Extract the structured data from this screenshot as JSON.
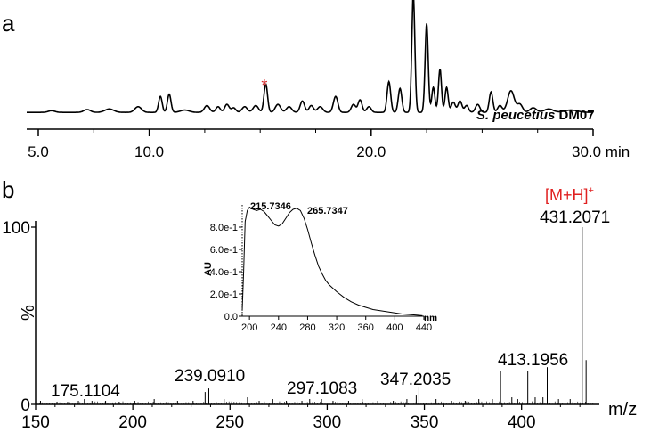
{
  "chart_data": [
    {
      "panel": "a",
      "type": "line",
      "sample_label_italic": "S. peucetius",
      "sample_label_suffix": "DM07",
      "marker_symbol": "*",
      "marker_x": 15.25,
      "marker_color": "#d62728",
      "xlim": [
        5.0,
        30.0
      ],
      "ylim": [
        0,
        100
      ],
      "xticks": [
        "5.0",
        "10.0",
        "20.0",
        "30.0 min"
      ],
      "xtick_values": [
        5.0,
        10.0,
        20.0,
        30.0
      ],
      "minor_tick_values": [
        7.5,
        12.5,
        15.0,
        17.5,
        22.5,
        25.0,
        27.5
      ],
      "baseline": 3,
      "peaks": [
        [
          5.6,
          1.5,
          0.15
        ],
        [
          7.2,
          2.5,
          0.15
        ],
        [
          8.2,
          3,
          0.2
        ],
        [
          9.5,
          5,
          0.15
        ],
        [
          10.5,
          14,
          0.08
        ],
        [
          10.9,
          16,
          0.08
        ],
        [
          11.6,
          2,
          0.2
        ],
        [
          12.6,
          6,
          0.12
        ],
        [
          13.1,
          5,
          0.1
        ],
        [
          13.5,
          7,
          0.1
        ],
        [
          13.8,
          4,
          0.1
        ],
        [
          14.3,
          5,
          0.12
        ],
        [
          14.8,
          6,
          0.12
        ],
        [
          15.25,
          25,
          0.08
        ],
        [
          15.8,
          7,
          0.12
        ],
        [
          16.3,
          5,
          0.12
        ],
        [
          16.9,
          10,
          0.1
        ],
        [
          17.3,
          6,
          0.1
        ],
        [
          17.7,
          5,
          0.12
        ],
        [
          18.4,
          14,
          0.1
        ],
        [
          19.2,
          7,
          0.1
        ],
        [
          19.5,
          11,
          0.09
        ],
        [
          19.9,
          5,
          0.1
        ],
        [
          20.8,
          27,
          0.08
        ],
        [
          21.3,
          21,
          0.08
        ],
        [
          21.9,
          103,
          0.07
        ],
        [
          22.5,
          78,
          0.07
        ],
        [
          22.8,
          22,
          0.07
        ],
        [
          23.1,
          38,
          0.07
        ],
        [
          23.4,
          22,
          0.07
        ],
        [
          23.7,
          9,
          0.09
        ],
        [
          24.0,
          10,
          0.09
        ],
        [
          24.3,
          6,
          0.09
        ],
        [
          24.8,
          7,
          0.1
        ],
        [
          25.4,
          18,
          0.08
        ],
        [
          25.8,
          6,
          0.1
        ],
        [
          26.3,
          19,
          0.15
        ],
        [
          26.7,
          7,
          0.12
        ],
        [
          27.3,
          4,
          0.15
        ],
        [
          28.0,
          3,
          0.2
        ],
        [
          29.0,
          2,
          0.3
        ]
      ]
    },
    {
      "panel": "b",
      "type": "bar",
      "xlabel": "m/z",
      "ylabel": "%",
      "xlim": [
        150,
        440
      ],
      "ylim": [
        0,
        100
      ],
      "xticks": [
        "150",
        "200",
        "250",
        "300",
        "350",
        "400"
      ],
      "xtick_values": [
        150,
        200,
        250,
        300,
        350,
        400
      ],
      "yticks": [
        "0",
        "100"
      ],
      "ytick_values": [
        0,
        100
      ],
      "adduct_label": "[M+H]",
      "adduct_sup": "+",
      "adduct_color": "#e02020",
      "peak_labels": [
        {
          "mz": 175.1104,
          "text": "175.1104"
        },
        {
          "mz": 239.091,
          "text": "239.0910"
        },
        {
          "mz": 297.1083,
          "text": "297.1083"
        },
        {
          "mz": 347.2035,
          "text": "347.2035"
        },
        {
          "mz": 413.1956,
          "text": "413.1956"
        },
        {
          "mz": 431.2071,
          "text": "431.2071"
        }
      ],
      "peaks": [
        [
          152.5,
          2
        ],
        [
          161,
          1.5
        ],
        [
          167,
          1.5
        ],
        [
          172,
          2
        ],
        [
          175.1,
          3
        ],
        [
          179,
          2
        ],
        [
          186,
          2
        ],
        [
          193,
          1.5
        ],
        [
          201,
          2
        ],
        [
          211,
          3
        ],
        [
          223,
          2
        ],
        [
          231,
          2
        ],
        [
          237.2,
          7
        ],
        [
          239.1,
          9
        ],
        [
          247,
          3
        ],
        [
          251,
          2
        ],
        [
          259,
          4
        ],
        [
          265,
          2
        ],
        [
          272,
          3
        ],
        [
          279,
          2
        ],
        [
          287,
          2
        ],
        [
          291,
          3
        ],
        [
          297.1,
          3
        ],
        [
          303,
          2
        ],
        [
          311,
          2
        ],
        [
          318,
          3
        ],
        [
          326,
          2
        ],
        [
          334,
          2
        ],
        [
          341,
          3
        ],
        [
          345.8,
          5
        ],
        [
          347.2,
          10
        ],
        [
          356,
          3
        ],
        [
          364,
          2
        ],
        [
          371,
          2
        ],
        [
          378,
          3
        ],
        [
          385,
          3
        ],
        [
          389.2,
          19
        ],
        [
          395,
          4
        ],
        [
          398,
          3
        ],
        [
          403.2,
          19
        ],
        [
          407,
          4
        ],
        [
          411,
          4
        ],
        [
          413.2,
          21
        ],
        [
          419,
          3
        ],
        [
          425,
          3
        ],
        [
          431.2,
          100
        ],
        [
          433.2,
          25
        ]
      ]
    },
    {
      "panel": "b-inset",
      "type": "line",
      "ylabel": "AU",
      "xlabel": "nm",
      "xlim": [
        190,
        440
      ],
      "ylim": [
        0,
        1.0
      ],
      "xticks": [
        "200",
        "240",
        "280",
        "320",
        "360",
        "400",
        "440"
      ],
      "xtick_values": [
        200,
        240,
        280,
        320,
        360,
        400,
        440
      ],
      "yticks": [
        "0.0",
        "2.0e-1",
        "4.0e-1",
        "6.0e-1",
        "8.0e-1"
      ],
      "ytick_values": [
        0,
        0.2,
        0.4,
        0.6,
        0.8
      ],
      "max_labels": [
        {
          "x": 215.7346,
          "text": "215.7346"
        },
        {
          "x": 265.7347,
          "text": "265.7347"
        }
      ],
      "points": [
        [
          190,
          0.05
        ],
        [
          192,
          0.4
        ],
        [
          194,
          0.85
        ],
        [
          197,
          0.95
        ],
        [
          200,
          0.98
        ],
        [
          205,
          0.96
        ],
        [
          210,
          0.95
        ],
        [
          215,
          0.96
        ],
        [
          220,
          0.94
        ],
        [
          225,
          0.9
        ],
        [
          230,
          0.86
        ],
        [
          235,
          0.82
        ],
        [
          240,
          0.81
        ],
        [
          245,
          0.83
        ],
        [
          250,
          0.88
        ],
        [
          255,
          0.93
        ],
        [
          260,
          0.96
        ],
        [
          265,
          0.97
        ],
        [
          270,
          0.95
        ],
        [
          275,
          0.88
        ],
        [
          280,
          0.78
        ],
        [
          285,
          0.66
        ],
        [
          290,
          0.55
        ],
        [
          295,
          0.45
        ],
        [
          300,
          0.38
        ],
        [
          305,
          0.32
        ],
        [
          310,
          0.28
        ],
        [
          320,
          0.22
        ],
        [
          330,
          0.17
        ],
        [
          340,
          0.13
        ],
        [
          350,
          0.1
        ],
        [
          360,
          0.08
        ],
        [
          370,
          0.06
        ],
        [
          380,
          0.05
        ],
        [
          390,
          0.04
        ],
        [
          400,
          0.03
        ],
        [
          410,
          0.02
        ],
        [
          420,
          0.015
        ],
        [
          430,
          0.01
        ],
        [
          438,
          0.005
        ]
      ]
    }
  ],
  "panel_labels": {
    "a": "a",
    "b": "b"
  }
}
